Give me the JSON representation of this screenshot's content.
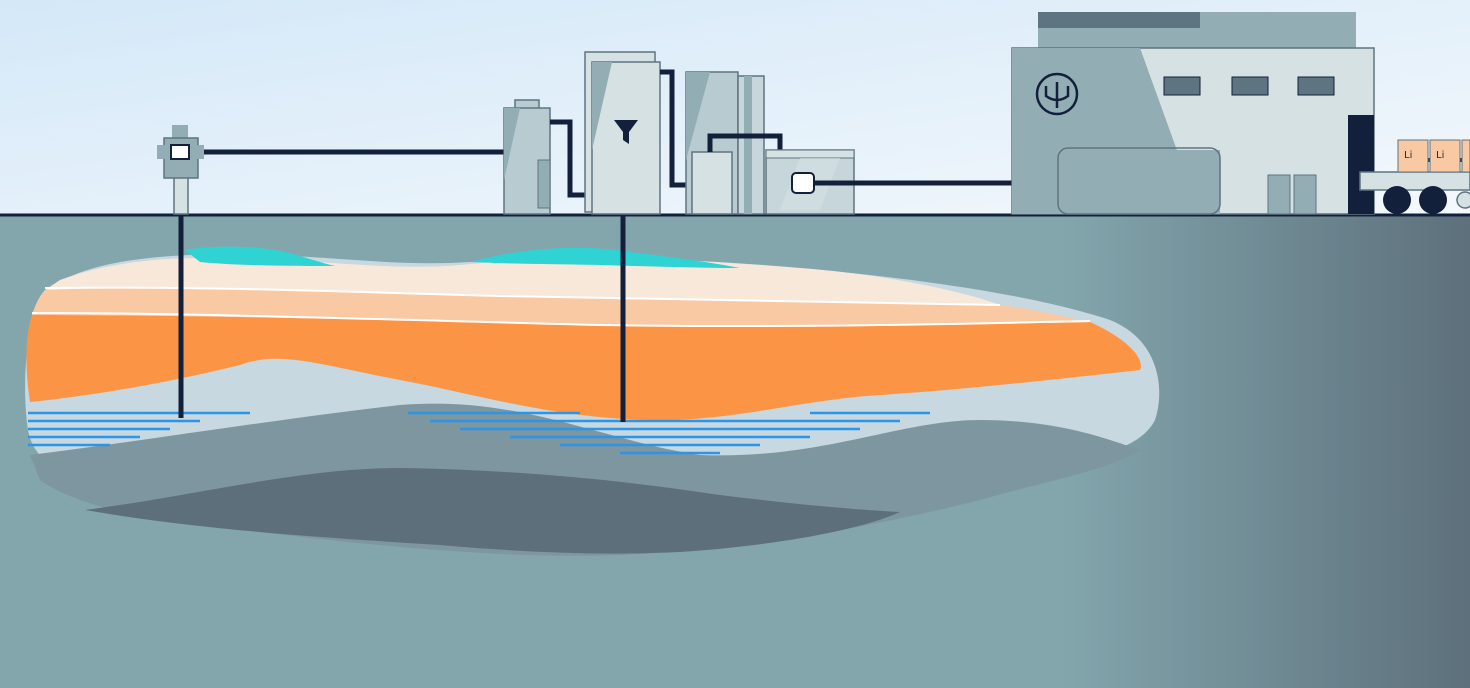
{
  "diagram": {
    "cargo_label": "Li",
    "colors": {
      "sky_top": "#d6e9f8",
      "sky_bottom": "#eef6fc",
      "ground": "#83a6ad",
      "ground_dark": "#5e7480",
      "pipe": "#13203b",
      "teal_layer": "#2fd3d3",
      "cream_layer": "#f7e7da",
      "peach_layer": "#f9c9a3",
      "orange_layer": "#fb9545",
      "pale_blue_layer": "#c7d8e0",
      "brine_lines": "#2d95e8",
      "gray_layer": "#7b959e",
      "slate_layer": "#5e6f7c",
      "building_light": "#d6e1e4",
      "building_mid": "#92aeb4",
      "building_dark": "#5e7480"
    },
    "icons": [
      "well-head-icon",
      "funnel-icon",
      "trident-logo-icon",
      "lithium-box-icon"
    ]
  }
}
